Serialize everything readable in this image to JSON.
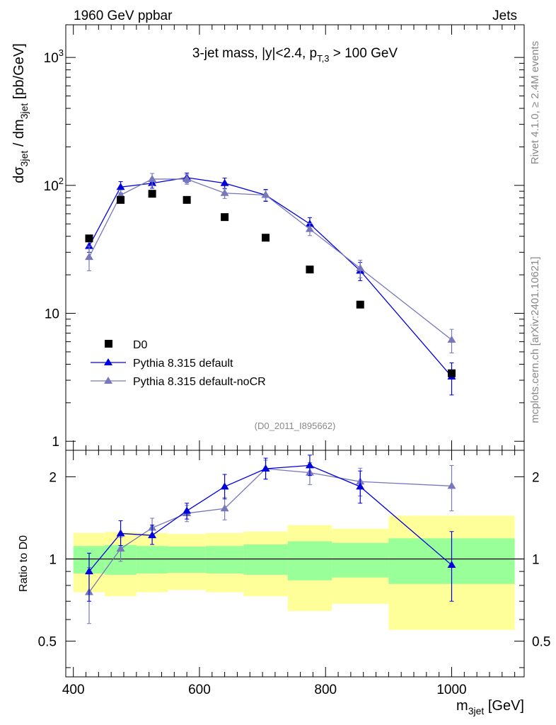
{
  "header": {
    "left": "1960 GeV ppbar",
    "right": "Jets"
  },
  "side": {
    "top": "Rivet 4.1.0, ≥ 2.4M events",
    "bottom": "mcplots.cern.ch [arXiv:2401.10621]"
  },
  "chart_data": [
    {
      "type": "scatter",
      "panel": "main",
      "title": {
        "prefix": "3-jet mass, |y|<2.4, p",
        "sub": "T,3",
        "suffix": " > 100 GeV"
      },
      "ylabel": {
        "a": "dσ",
        "a_sub": "3jet",
        "b": " / dm",
        "b_sub": "3jet",
        "c": " [pb/GeV]"
      },
      "yscale": "log",
      "ylim": [
        0.85,
        1800
      ],
      "xlim": [
        388,
        1115
      ],
      "yticks": [
        {
          "v": 1,
          "label": "1"
        },
        {
          "v": 10,
          "label": "10"
        },
        {
          "v": 100,
          "label": "10",
          "sup": "2"
        },
        {
          "v": 1000,
          "label": "10",
          "sup": "3"
        }
      ],
      "watermark": "(D0_2011_I895662)",
      "legend": [
        {
          "key": "data",
          "label": "D0"
        },
        {
          "key": "def",
          "label": "Pythia 8.315 default"
        },
        {
          "key": "nocr",
          "label": "Pythia 8.315 default-noCR"
        }
      ],
      "series": [
        {
          "key": "data",
          "name": "D0",
          "color": "#000000",
          "marker": "square",
          "x": [
            425,
            475,
            525,
            580,
            640,
            705,
            775,
            855,
            1000
          ],
          "y": [
            38.5,
            77,
            86,
            77,
            56.5,
            39,
            22,
            11.7,
            3.4
          ],
          "err": [
            1.5,
            3,
            3,
            3,
            2,
            1.5,
            1,
            0.5,
            0.15
          ]
        },
        {
          "key": "def",
          "name": "Pythia 8.315 default",
          "color": "#0000dd",
          "marker": "triangle",
          "x": [
            425,
            475,
            525,
            580,
            640,
            705,
            775,
            855,
            1000
          ],
          "y": [
            33.5,
            97,
            104,
            115,
            104,
            84,
            50,
            21.5,
            3.2
          ],
          "err": [
            3.5,
            10,
            9,
            10,
            10,
            9,
            6,
            3.5,
            0.9
          ]
        },
        {
          "key": "nocr",
          "name": "Pythia 8.315 default-noCR",
          "color": "#7777bb",
          "marker": "triangle",
          "x": [
            425,
            475,
            525,
            580,
            640,
            705,
            775,
            855,
            1000
          ],
          "y": [
            27.5,
            84,
            112,
            112,
            87,
            84,
            45.5,
            22.5,
            6.2
          ],
          "err": [
            6,
            8,
            12,
            10,
            8,
            8,
            5,
            3.5,
            1.3
          ]
        }
      ]
    },
    {
      "type": "scatter",
      "panel": "ratio",
      "ylabel": "Ratio to D0",
      "xlabel": {
        "a": "m",
        "a_sub": "3jet",
        "b": " [GeV]"
      },
      "yscale": "log",
      "ylim": [
        0.37,
        2.5
      ],
      "xlim": [
        388,
        1115
      ],
      "reference_line": 1,
      "xticks": [
        {
          "v": 400,
          "label": "400"
        },
        {
          "v": 600,
          "label": "600"
        },
        {
          "v": 800,
          "label": "800"
        },
        {
          "v": 1000,
          "label": "1000"
        }
      ],
      "yticks": [
        {
          "v": 0.5,
          "label": "0.5"
        },
        {
          "v": 1,
          "label": "1"
        },
        {
          "v": 2,
          "label": "2"
        }
      ],
      "bands": [
        {
          "x0": 400,
          "x1": 450,
          "y_lo": 0.755,
          "y_hi": 1.245,
          "g_lo": 0.885,
          "g_hi": 1.115
        },
        {
          "x0": 450,
          "x1": 500,
          "y_lo": 0.73,
          "y_hi": 1.255,
          "g_lo": 0.875,
          "g_hi": 1.125
        },
        {
          "x0": 500,
          "x1": 550,
          "y_lo": 0.755,
          "y_hi": 1.245,
          "g_lo": 0.885,
          "g_hi": 1.115
        },
        {
          "x0": 550,
          "x1": 610,
          "y_lo": 0.77,
          "y_hi": 1.235,
          "g_lo": 0.89,
          "g_hi": 1.11
        },
        {
          "x0": 610,
          "x1": 670,
          "y_lo": 0.755,
          "y_hi": 1.245,
          "g_lo": 0.885,
          "g_hi": 1.115
        },
        {
          "x0": 670,
          "x1": 740,
          "y_lo": 0.73,
          "y_hi": 1.26,
          "g_lo": 0.875,
          "g_hi": 1.13
        },
        {
          "x0": 740,
          "x1": 810,
          "y_lo": 0.645,
          "y_hi": 1.33,
          "g_lo": 0.835,
          "g_hi": 1.16
        },
        {
          "x0": 810,
          "x1": 900,
          "y_lo": 0.685,
          "y_hi": 1.29,
          "g_lo": 0.855,
          "g_hi": 1.145
        },
        {
          "x0": 900,
          "x1": 1100,
          "y_lo": 0.55,
          "y_hi": 1.44,
          "g_lo": 0.81,
          "g_hi": 1.19
        }
      ],
      "series": [
        {
          "key": "def",
          "name": "Pythia 8.315 default",
          "color": "#0000dd",
          "marker": "triangle",
          "x": [
            425,
            475,
            525,
            580,
            640,
            705,
            775,
            855,
            1000
          ],
          "y": [
            0.9,
            1.24,
            1.22,
            1.5,
            1.84,
            2.14,
            2.2,
            1.84,
            0.95
          ],
          "lo": [
            0.7,
            1.12,
            1.13,
            1.4,
            1.66,
            1.96,
            2.02,
            1.6,
            0.7
          ],
          "hi": [
            1.05,
            1.38,
            1.33,
            1.6,
            2.04,
            2.34,
            2.4,
            2.1,
            1.26
          ]
        },
        {
          "key": "nocr",
          "name": "Pythia 8.315 default-noCR",
          "color": "#7777bb",
          "marker": "triangle",
          "x": [
            425,
            475,
            525,
            580,
            640,
            705,
            775,
            855,
            1000
          ],
          "y": [
            0.755,
            1.09,
            1.3,
            1.47,
            1.53,
            2.14,
            2.07,
            1.92,
            1.85
          ],
          "lo": [
            0.58,
            0.98,
            1.2,
            1.37,
            1.39,
            1.96,
            1.87,
            1.7,
            1.5
          ],
          "hi": [
            0.93,
            1.2,
            1.41,
            1.57,
            1.68,
            2.3,
            2.25,
            2.15,
            2.2
          ]
        }
      ]
    }
  ]
}
